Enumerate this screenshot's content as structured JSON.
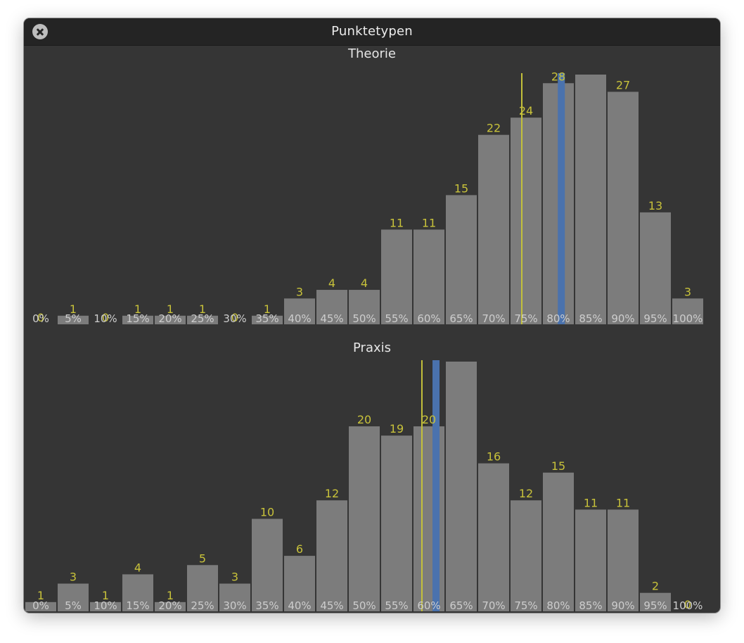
{
  "window": {
    "title": "Punktetypen"
  },
  "colors": {
    "bar": "#7c7c7c",
    "count_label": "#c8c23a",
    "bin_label": "#cdcdcd",
    "marker_yellow": "#c4c13b",
    "marker_blue": "#4a72ad"
  },
  "chart_data": [
    {
      "type": "bar",
      "title": "Theorie",
      "categories": [
        "0%",
        "5%",
        "10%",
        "15%",
        "20%",
        "25%",
        "30%",
        "35%",
        "40%",
        "45%",
        "50%",
        "55%",
        "60%",
        "65%",
        "70%",
        "75%",
        "80%",
        "85%",
        "90%",
        "95%",
        "100%"
      ],
      "values": [
        0,
        1,
        0,
        1,
        1,
        1,
        0,
        1,
        3,
        4,
        4,
        11,
        11,
        15,
        22,
        24,
        28,
        29,
        27,
        13,
        3
      ],
      "ylim": [
        0,
        29
      ],
      "markers": [
        {
          "color": "yellow",
          "x": 0.7435
        },
        {
          "color": "blue",
          "x": 0.8046
        }
      ]
    },
    {
      "type": "bar",
      "title": "Praxis",
      "categories": [
        "0%",
        "5%",
        "10%",
        "15%",
        "20%",
        "25%",
        "30%",
        "35%",
        "40%",
        "45%",
        "50%",
        "55%",
        "60%",
        "65%",
        "70%",
        "75%",
        "80%",
        "85%",
        "90%",
        "95%",
        "100%"
      ],
      "values": [
        1,
        3,
        1,
        4,
        1,
        5,
        3,
        10,
        6,
        12,
        20,
        19,
        20,
        27,
        16,
        12,
        15,
        11,
        11,
        2,
        0
      ],
      "ylim": [
        0,
        27
      ],
      "markers": [
        {
          "color": "yellow",
          "x": 0.5891
        },
        {
          "color": "blue",
          "x": 0.6109
        }
      ]
    }
  ]
}
